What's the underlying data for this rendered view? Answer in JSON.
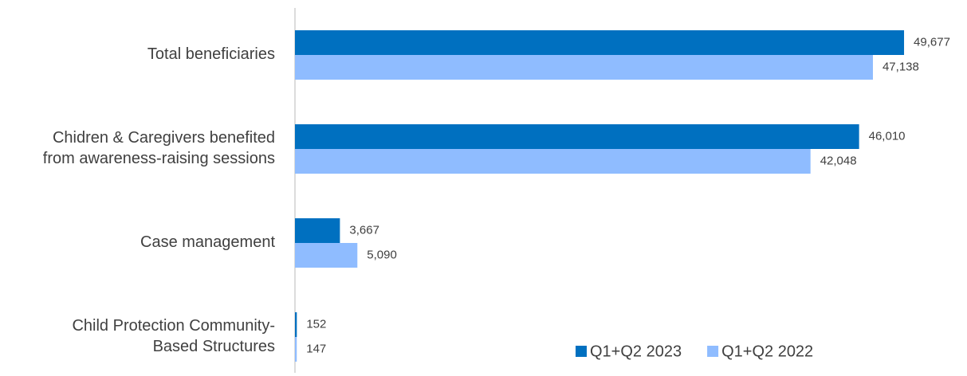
{
  "chart_data": {
    "type": "barh",
    "categories": [
      "Total beneficiaries",
      "Chidren & Caregivers benefited\nfrom awareness-raising sessions",
      "Case management",
      "Child Protection Community-\nBased Structures"
    ],
    "series": [
      {
        "name": "Q1+Q2 2023",
        "color": "#0070c0",
        "values": [
          49677,
          46010,
          3667,
          152
        ],
        "value_labels": [
          "49,677",
          "46,010",
          "3,667",
          "152"
        ]
      },
      {
        "name": "Q1+Q2 2022",
        "color": "#8fbcff",
        "values": [
          47138,
          42048,
          5090,
          147
        ],
        "value_labels": [
          "47,138",
          "42,048",
          "5,090",
          "147"
        ]
      }
    ],
    "xlim": [
      0,
      50000
    ],
    "legend": "lower right"
  }
}
